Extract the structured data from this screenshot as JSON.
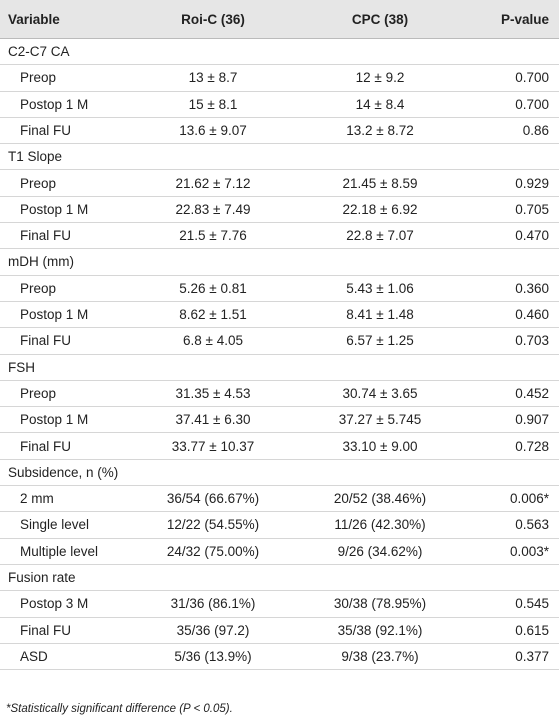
{
  "table": {
    "header": [
      "Variable",
      "Roi-C (36)",
      "CPC (38)",
      "P-value"
    ],
    "sections": [
      {
        "title": "C2-C7 CA",
        "rows": [
          [
            "Preop",
            "13 ± 8.7",
            "12 ± 9.2",
            "0.700"
          ],
          [
            "Postop 1 M",
            "15 ± 8.1",
            "14 ± 8.4",
            "0.700"
          ],
          [
            "Final FU",
            "13.6 ± 9.07",
            "13.2 ± 8.72",
            "0.86"
          ]
        ]
      },
      {
        "title": "T1 Slope",
        "rows": [
          [
            "Preop",
            "21.62 ± 7.12",
            "21.45 ± 8.59",
            "0.929"
          ],
          [
            "Postop 1 M",
            "22.83 ± 7.49",
            "22.18 ± 6.92",
            "0.705"
          ],
          [
            "Final FU",
            "21.5 ± 7.76",
            "22.8 ± 7.07",
            "0.470"
          ]
        ]
      },
      {
        "title": "mDH (mm)",
        "rows": [
          [
            "Preop",
            "5.26 ± 0.81",
            "5.43 ± 1.06",
            "0.360"
          ],
          [
            "Postop 1 M",
            "8.62 ± 1.51",
            "8.41 ± 1.48",
            "0.460"
          ],
          [
            "Final FU",
            "6.8 ± 4.05",
            "6.57 ± 1.25",
            "0.703"
          ]
        ]
      },
      {
        "title": "FSH",
        "rows": [
          [
            "Preop",
            "31.35 ± 4.53",
            "30.74 ± 3.65",
            "0.452"
          ],
          [
            "Postop 1 M",
            "37.41 ± 6.30",
            "37.27 ± 5.745",
            "0.907"
          ],
          [
            "Final FU",
            "33.77 ± 10.37",
            "33.10 ± 9.00",
            "0.728"
          ]
        ]
      },
      {
        "title": "Subsidence, n (%)",
        "rows": [
          [
            "2 mm",
            "36/54 (66.67%)",
            "20/52 (38.46%)",
            "0.006*"
          ],
          [
            "Single level",
            "12/22 (54.55%)",
            "11/26 (42.30%)",
            "0.563"
          ],
          [
            "Multiple level",
            "24/32 (75.00%)",
            "9/26 (34.62%)",
            "0.003*"
          ]
        ]
      },
      {
        "title": "Fusion rate",
        "rows": [
          [
            "Postop 3 M",
            "31/36 (86.1%)",
            "30/38 (78.95%)",
            "0.545"
          ],
          [
            "Final FU",
            "35/36 (97.2)",
            "35/38 (92.1%)",
            "0.615"
          ],
          [
            "ASD",
            "5/36 (13.9%)",
            "9/38 (23.7%)",
            "0.377"
          ]
        ]
      }
    ],
    "footnote": "*Statistically significant difference (P < 0.05)."
  }
}
